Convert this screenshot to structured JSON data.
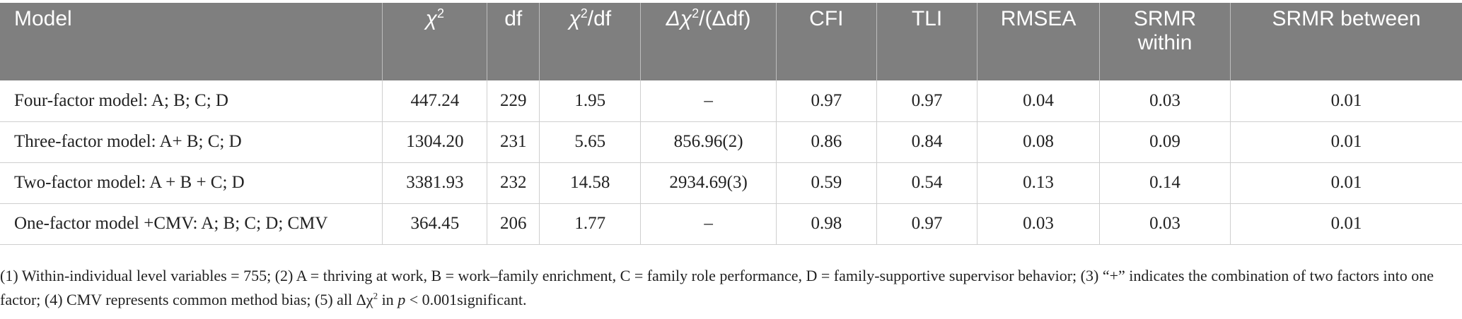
{
  "table": {
    "headers": [
      {
        "pre": "Model",
        "sup": "",
        "post": ""
      },
      {
        "pre": "χ",
        "sup": "2",
        "post": ""
      },
      {
        "pre": "df",
        "sup": "",
        "post": ""
      },
      {
        "pre": "χ",
        "sup": "2",
        "post": "/df"
      },
      {
        "pre": "Δχ",
        "sup": "2",
        "post": "/(Δdf)"
      },
      {
        "pre": "CFI",
        "sup": "",
        "post": ""
      },
      {
        "pre": "TLI",
        "sup": "",
        "post": ""
      },
      {
        "pre": "RMSEA",
        "sup": "",
        "post": ""
      },
      {
        "pre": "SRMR within",
        "sup": "",
        "post": ""
      },
      {
        "pre": "SRMR between",
        "sup": "",
        "post": ""
      }
    ],
    "rows": [
      [
        "Four-factor model: A; B; C; D",
        "447.24",
        "229",
        "1.95",
        "–",
        "0.97",
        "0.97",
        "0.04",
        "0.03",
        "0.01"
      ],
      [
        "Three-factor model: A+ B; C; D",
        "1304.20",
        "231",
        "5.65",
        "856.96(2)",
        "0.86",
        "0.84",
        "0.08",
        "0.09",
        "0.01"
      ],
      [
        "Two-factor model: A + B + C; D",
        "3381.93",
        "232",
        "14.58",
        "2934.69(3)",
        "0.59",
        "0.54",
        "0.13",
        "0.14",
        "0.01"
      ],
      [
        "One-factor model +CMV: A; B; C; D; CMV",
        "364.45",
        "206",
        "1.77",
        "–",
        "0.98",
        "0.97",
        "0.03",
        "0.03",
        "0.01"
      ]
    ]
  },
  "footnote": {
    "part1": "(1) Within-individual level variables = 755; (2) A = thriving at work, B = work–family enrichment, C = family role performance, D = family-supportive supervisor behavior; (3) “+” indicates the combination of two factors into one factor; (4) CMV represents common method bias; (5) all Δχ",
    "sup": "2",
    "part2": " in ",
    "p_symbol": "p",
    "part3": " < 0.001significant."
  }
}
